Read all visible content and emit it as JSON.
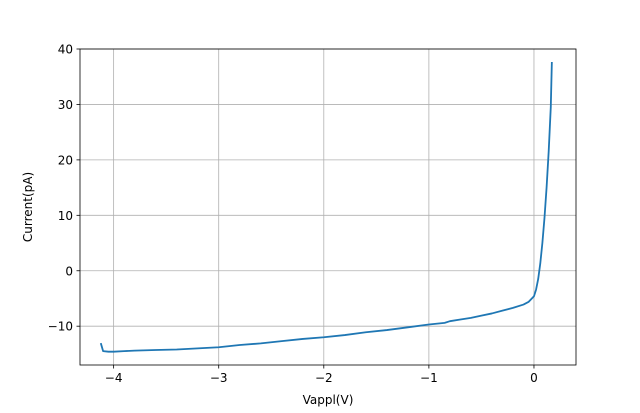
{
  "chart_data": {
    "type": "line",
    "title": "",
    "xlabel": "Vappl(V)",
    "ylabel": "Current(pA)",
    "xlim": [
      -4.32,
      0.4
    ],
    "ylim": [
      -17,
      40
    ],
    "x_ticks": [
      -4,
      -3,
      -2,
      -1,
      0
    ],
    "x_tick_labels": [
      "−4",
      "−3",
      "−2",
      "−1",
      "0"
    ],
    "y_ticks": [
      -10,
      0,
      10,
      20,
      30,
      40
    ],
    "y_tick_labels": [
      "−10",
      "0",
      "10",
      "20",
      "30",
      "40"
    ],
    "grid": true,
    "legend": "none",
    "series": [
      {
        "color": "#1f77b4",
        "x": [
          -4.12,
          -4.1,
          -4.05,
          -4.0,
          -3.9,
          -3.8,
          -3.6,
          -3.4,
          -3.2,
          -3.0,
          -2.8,
          -2.6,
          -2.4,
          -2.2,
          -2.0,
          -1.8,
          -1.6,
          -1.4,
          -1.2,
          -1.0,
          -0.85,
          -0.8,
          -0.7,
          -0.6,
          -0.5,
          -0.4,
          -0.3,
          -0.2,
          -0.1,
          -0.05,
          0.0,
          0.02,
          0.04,
          0.06,
          0.08,
          0.1,
          0.12,
          0.14,
          0.16,
          0.17
        ],
        "y": [
          -13.2,
          -14.5,
          -14.6,
          -14.6,
          -14.5,
          -14.4,
          -14.3,
          -14.2,
          -14.0,
          -13.8,
          -13.4,
          -13.1,
          -12.7,
          -12.3,
          -12.0,
          -11.6,
          -11.1,
          -10.7,
          -10.2,
          -9.7,
          -9.4,
          -9.1,
          -8.8,
          -8.5,
          -8.1,
          -7.7,
          -7.2,
          -6.7,
          -6.1,
          -5.6,
          -4.6,
          -3.4,
          -1.5,
          1.3,
          5.0,
          9.5,
          15.0,
          21.5,
          29.5,
          37.5
        ]
      }
    ]
  }
}
